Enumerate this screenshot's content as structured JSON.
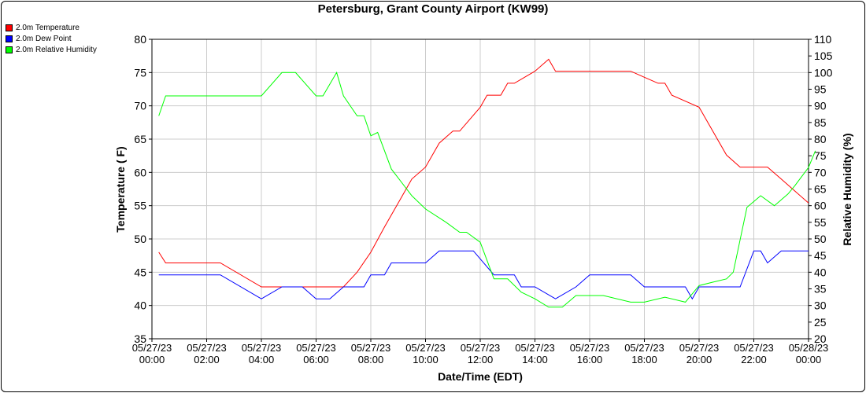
{
  "chart_data": {
    "type": "line",
    "title": "Petersburg, Grant County Airport (KW99)",
    "xlabel": "Date/Time (EDT)",
    "ylabel": "Temperature ( F)",
    "y2label": "Relative Humidity (%)",
    "xlim": [
      0,
      24
    ],
    "ylim": [
      35,
      80
    ],
    "y2lim": [
      20,
      110
    ],
    "grid": true,
    "legend_position": "top-left",
    "x_ticks": [
      {
        "x": 0,
        "line1": "05/27/23",
        "line2": "00:00"
      },
      {
        "x": 2,
        "line1": "05/27/23",
        "line2": "02:00"
      },
      {
        "x": 4,
        "line1": "05/27/23",
        "line2": "04:00"
      },
      {
        "x": 6,
        "line1": "05/27/23",
        "line2": "06:00"
      },
      {
        "x": 8,
        "line1": "05/27/23",
        "line2": "08:00"
      },
      {
        "x": 10,
        "line1": "05/27/23",
        "line2": "10:00"
      },
      {
        "x": 12,
        "line1": "05/27/23",
        "line2": "12:00"
      },
      {
        "x": 14,
        "line1": "05/27/23",
        "line2": "14:00"
      },
      {
        "x": 16,
        "line1": "05/27/23",
        "line2": "16:00"
      },
      {
        "x": 18,
        "line1": "05/27/23",
        "line2": "18:00"
      },
      {
        "x": 20,
        "line1": "05/27/23",
        "line2": "20:00"
      },
      {
        "x": 22,
        "line1": "05/27/23",
        "line2": "22:00"
      },
      {
        "x": 24,
        "line1": "05/28/23",
        "line2": "00:00"
      }
    ],
    "y_ticks": [
      "35",
      "40",
      "45",
      "50",
      "55",
      "60",
      "65",
      "70",
      "75",
      "80"
    ],
    "y2_ticks": [
      "20",
      "25",
      "30",
      "35",
      "40",
      "45",
      "50",
      "55",
      "60",
      "65",
      "70",
      "75",
      "80",
      "85",
      "90",
      "95",
      "100",
      "105",
      "110"
    ],
    "series": [
      {
        "name": "2.0m Temperature",
        "color": "#ff0000",
        "axis": "left",
        "points": [
          [
            0.25,
            48
          ],
          [
            0.5,
            46.4
          ],
          [
            2,
            46.4
          ],
          [
            2.5,
            46.4
          ],
          [
            4,
            42.8
          ],
          [
            5,
            42.8
          ],
          [
            6,
            42.8
          ],
          [
            6.5,
            42.8
          ],
          [
            7,
            42.8
          ],
          [
            7.5,
            45
          ],
          [
            8,
            48
          ],
          [
            8.5,
            51.8
          ],
          [
            9,
            55.4
          ],
          [
            9.5,
            59
          ],
          [
            10,
            60.8
          ],
          [
            10.5,
            64.4
          ],
          [
            11,
            66.2
          ],
          [
            11.25,
            66.2
          ],
          [
            12,
            69.8
          ],
          [
            12.25,
            71.6
          ],
          [
            12.75,
            71.6
          ],
          [
            13,
            73.4
          ],
          [
            13.25,
            73.4
          ],
          [
            14,
            75.2
          ],
          [
            14.5,
            77
          ],
          [
            14.75,
            75.2
          ],
          [
            16,
            75.2
          ],
          [
            16.5,
            75.2
          ],
          [
            17.5,
            75.2
          ],
          [
            18,
            74.3
          ],
          [
            18.5,
            73.4
          ],
          [
            18.75,
            73.4
          ],
          [
            19,
            71.6
          ],
          [
            20,
            69.8
          ],
          [
            20.25,
            68
          ],
          [
            21,
            62.6
          ],
          [
            21.5,
            60.8
          ],
          [
            22.25,
            60.8
          ],
          [
            22.5,
            60.8
          ],
          [
            23,
            59
          ],
          [
            23.5,
            57.2
          ],
          [
            24,
            55.4
          ]
        ]
      },
      {
        "name": "2.0m Dew Point",
        "color": "#0000ff",
        "axis": "left",
        "points": [
          [
            0.25,
            44.6
          ],
          [
            2,
            44.6
          ],
          [
            2.5,
            44.6
          ],
          [
            4,
            41
          ],
          [
            4.75,
            42.8
          ],
          [
            5.5,
            42.8
          ],
          [
            6,
            41
          ],
          [
            6.5,
            41
          ],
          [
            7,
            42.8
          ],
          [
            7.75,
            42.8
          ],
          [
            8,
            44.6
          ],
          [
            8.5,
            44.6
          ],
          [
            8.75,
            46.4
          ],
          [
            9.5,
            46.4
          ],
          [
            10,
            46.4
          ],
          [
            10.5,
            48.2
          ],
          [
            11,
            48.2
          ],
          [
            11.75,
            48.2
          ],
          [
            12.5,
            44.6
          ],
          [
            13.25,
            44.6
          ],
          [
            13.5,
            42.8
          ],
          [
            14,
            42.8
          ],
          [
            14.75,
            41
          ],
          [
            15.5,
            42.8
          ],
          [
            16,
            44.6
          ],
          [
            17,
            44.6
          ],
          [
            17.5,
            44.6
          ],
          [
            18,
            42.8
          ],
          [
            19,
            42.8
          ],
          [
            19.5,
            42.8
          ],
          [
            19.75,
            41
          ],
          [
            20,
            42.8
          ],
          [
            21,
            42.8
          ],
          [
            21.5,
            42.8
          ],
          [
            22,
            48.2
          ],
          [
            22.25,
            48.2
          ],
          [
            22.5,
            46.4
          ],
          [
            23,
            48.2
          ],
          [
            24,
            48.2
          ]
        ]
      },
      {
        "name": "2.0m Relative Humidity",
        "color": "#00ff00",
        "axis": "right",
        "points": [
          [
            0.25,
            87
          ],
          [
            0.5,
            93
          ],
          [
            2,
            93
          ],
          [
            2.5,
            93
          ],
          [
            4,
            93
          ],
          [
            4.75,
            100
          ],
          [
            5.25,
            100
          ],
          [
            6,
            93
          ],
          [
            6.25,
            93
          ],
          [
            6.75,
            100
          ],
          [
            7,
            93
          ],
          [
            7.5,
            87
          ],
          [
            7.75,
            87
          ],
          [
            8,
            81
          ],
          [
            8.25,
            82
          ],
          [
            8.75,
            71
          ],
          [
            9.5,
            63
          ],
          [
            10,
            59
          ],
          [
            10.75,
            55
          ],
          [
            11.25,
            52
          ],
          [
            11.5,
            52
          ],
          [
            12,
            49
          ],
          [
            12.5,
            38
          ],
          [
            13,
            38
          ],
          [
            13.5,
            34
          ],
          [
            14,
            32
          ],
          [
            14.5,
            29.5
          ],
          [
            15,
            29.5
          ],
          [
            15.5,
            33
          ],
          [
            16,
            33
          ],
          [
            16.5,
            33
          ],
          [
            17.5,
            31
          ],
          [
            18,
            31
          ],
          [
            18.75,
            32.5
          ],
          [
            19.5,
            31
          ],
          [
            20,
            36
          ],
          [
            20.5,
            37
          ],
          [
            21,
            38
          ],
          [
            21.25,
            40
          ],
          [
            21.75,
            59.5
          ],
          [
            22.25,
            63
          ],
          [
            22.75,
            60
          ],
          [
            23.25,
            63.5
          ],
          [
            23.5,
            66
          ],
          [
            24,
            71.5
          ],
          [
            24.25,
            76.5
          ]
        ]
      }
    ]
  }
}
